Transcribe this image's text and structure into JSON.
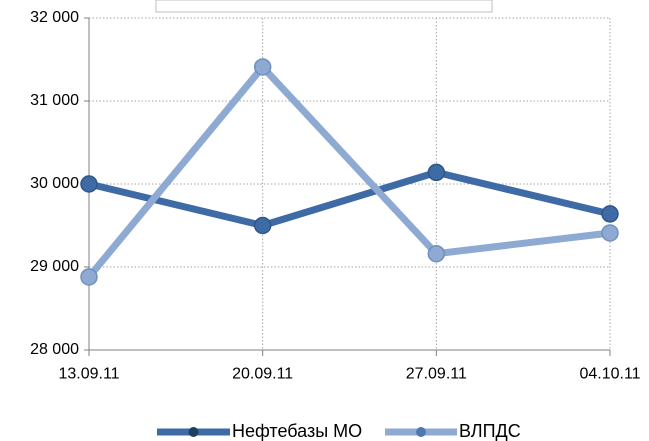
{
  "chart_data": {
    "type": "line",
    "categories": [
      "13.09.11",
      "20.09.11",
      "27.09.11",
      "04.10.11"
    ],
    "series": [
      {
        "name": "Нефтебазы МО",
        "values": [
          30000,
          29500,
          30140,
          29640
        ],
        "color": "#3e6aa6"
      },
      {
        "name": "ВЛПДС",
        "values": [
          28880,
          31410,
          29160,
          29410
        ],
        "color": "#8eaad3"
      }
    ],
    "ylim": [
      28000,
      32000
    ],
    "yticks": [
      28000,
      29000,
      30000,
      31000,
      32000
    ],
    "ytick_labels": [
      "28 000",
      "29 000",
      "30 000",
      "31 000",
      "32 000"
    ],
    "grid": true,
    "legend_position": "bottom"
  }
}
